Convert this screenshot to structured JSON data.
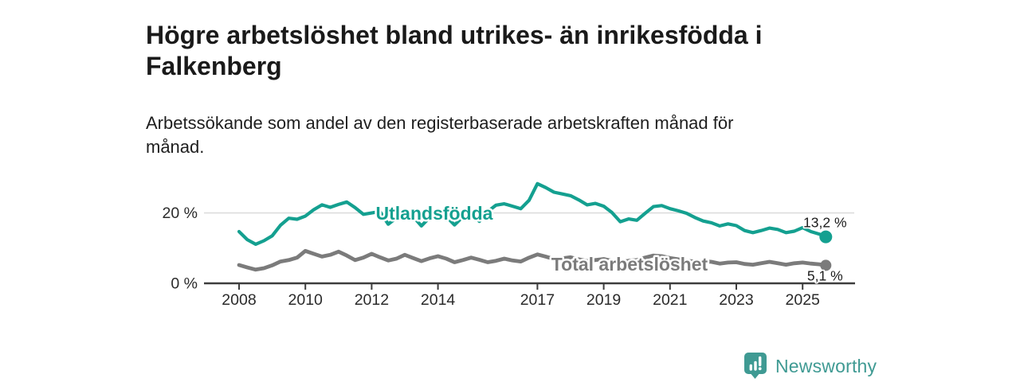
{
  "header": {
    "title": "Högre arbetslöshet bland utrikes- än inrikesfödda i\nFalkenberg",
    "subtitle": "Arbetssökande som andel av den registerbaserade arbetskraften månad för\nmånad."
  },
  "chart_data": {
    "type": "line",
    "title": "Högre arbetslöshet bland utrikes- än inrikesfödda i Falkenberg",
    "xlabel": "",
    "ylabel": "Arbetssökande som andel av den registerbaserade arbetskraften (%)",
    "xlim": [
      2006.8,
      2026.6
    ],
    "ylim": [
      0,
      30
    ],
    "grid": "horizontal, only at 20 %",
    "legend_position": "labels inline on lines",
    "x_ticks": [
      2008,
      2010,
      2012,
      2014,
      2017,
      2019,
      2021,
      2023,
      2025
    ],
    "y_ticks": [
      {
        "value": 0,
        "label": "0 %"
      },
      {
        "value": 20,
        "label": "20 %"
      }
    ],
    "x": [
      2008,
      2008.25,
      2008.5,
      2008.75,
      2009,
      2009.25,
      2009.5,
      2009.75,
      2010,
      2010.25,
      2010.5,
      2010.75,
      2011,
      2011.25,
      2011.5,
      2011.75,
      2012,
      2012.25,
      2012.5,
      2012.75,
      2013,
      2013.25,
      2013.5,
      2013.75,
      2014,
      2014.25,
      2014.5,
      2014.75,
      2015,
      2015.25,
      2015.5,
      2015.75,
      2016,
      2016.25,
      2016.5,
      2016.75,
      2017,
      2017.25,
      2017.5,
      2017.75,
      2018,
      2018.25,
      2018.5,
      2018.75,
      2019,
      2019.25,
      2019.5,
      2019.75,
      2020,
      2020.25,
      2020.5,
      2020.75,
      2021,
      2021.25,
      2021.5,
      2021.75,
      2022,
      2022.25,
      2022.5,
      2022.75,
      2023,
      2023.25,
      2023.5,
      2023.75,
      2024,
      2024.25,
      2024.5,
      2024.75,
      2025,
      2025.25,
      2025.5,
      2025.7
    ],
    "series": [
      {
        "key": "utlandsfodda",
        "name": "Utlandsfödda",
        "color": "#14a090",
        "line_width": 4.2,
        "end_value": 13.2,
        "end_label": "13,2 %",
        "end_label_side": "above",
        "label_pos": {
          "x": 545,
          "y": 276
        },
        "values": [
          14.7,
          12.4,
          11.1,
          12.1,
          13.5,
          16.5,
          18.5,
          18.2,
          19.1,
          20.9,
          22.3,
          21.6,
          22.4,
          23.1,
          21.5,
          19.6,
          20,
          20.4,
          16.8,
          18.6,
          20.3,
          19,
          16.3,
          18.7,
          20.6,
          19,
          16.6,
          18.9,
          20.2,
          17.6,
          20.4,
          22.2,
          22.6,
          21.9,
          21.2,
          23.6,
          28.3,
          27.2,
          25.9,
          25.4,
          24.9,
          23.7,
          22.3,
          22.7,
          21.9,
          20.1,
          17.5,
          18.3,
          17.9,
          19.9,
          21.8,
          22.1,
          21.2,
          20.6,
          19.9,
          18.7,
          17.7,
          17.2,
          16.3,
          16.9,
          16.4,
          15,
          14.4,
          15,
          15.7,
          15.3,
          14.4,
          14.8,
          15.8,
          14.7,
          14,
          13.2
        ]
      },
      {
        "key": "total-arbetsloshet",
        "name": "Total arbetslöshet",
        "color": "#7b7b7b",
        "line_width": 4.8,
        "end_value": 5.1,
        "end_label": "5,1 %",
        "end_label_side": "below",
        "label_pos": {
          "x": 790,
          "y": 340
        },
        "values": [
          5.2,
          4.5,
          3.9,
          4.3,
          5.1,
          6.2,
          6.6,
          7.3,
          9.2,
          8.4,
          7.6,
          8.1,
          9,
          7.9,
          6.6,
          7.3,
          8.4,
          7.4,
          6.5,
          7,
          8.1,
          7.2,
          6.3,
          7.1,
          7.7,
          7,
          6,
          6.6,
          7.3,
          6.7,
          6,
          6.4,
          7,
          6.5,
          6.2,
          7.3,
          8.2,
          7.6,
          6.9,
          7.1,
          7.4,
          6.8,
          6.3,
          6.6,
          6.9,
          6.4,
          6.1,
          6.4,
          6.6,
          7.3,
          7.9,
          7.7,
          7.2,
          6.8,
          6.4,
          6.2,
          6.3,
          6.1,
          5.6,
          5.9,
          6,
          5.5,
          5.3,
          5.7,
          6.1,
          5.7,
          5.3,
          5.7,
          5.9,
          5.6,
          5.4,
          5.1
        ]
      }
    ]
  },
  "footer": {
    "brand": "Newsworthy",
    "brand_color": "#3f9a93",
    "logo_icon": "bar-chart-speech-bubble-icon"
  }
}
